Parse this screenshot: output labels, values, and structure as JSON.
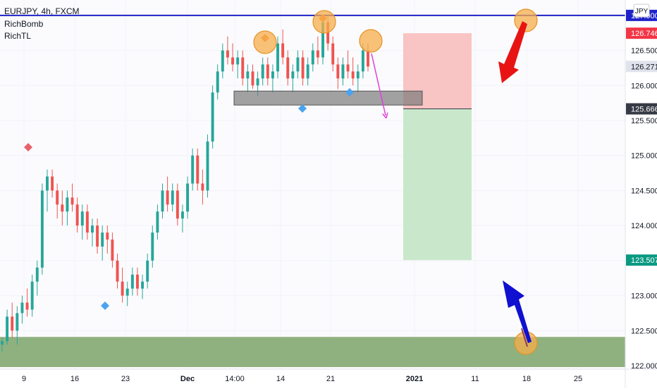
{
  "chart_data": {
    "type": "candlestick",
    "title": "EURJPY, 4h, FXCM",
    "indicators": [
      "RichBomb",
      "RichTL"
    ],
    "currency_badge": "JPY",
    "y_ticks": [
      "127.000",
      "126.500",
      "126.000",
      "125.500",
      "125.000",
      "124.500",
      "124.000",
      "123.500",
      "123.000",
      "122.500",
      "122.000"
    ],
    "x_ticks": [
      "9",
      "16",
      "23",
      "Dec",
      "14:00",
      "14",
      "21",
      "2021",
      "11",
      "18",
      "25"
    ],
    "ylim": [
      121.95,
      127.22
    ],
    "price_labels": [
      {
        "text": "127.000",
        "value": 127.0,
        "color": "#1e22c8"
      },
      {
        "text": "126.746",
        "value": 126.746,
        "color": "#f23645"
      },
      {
        "text": "126.271",
        "value": 126.271,
        "color": "#e0e3eb"
      },
      {
        "text": "125.666",
        "value": 125.666,
        "color": "#363a45"
      },
      {
        "text": "123.507",
        "value": 123.507,
        "color": "#089981"
      }
    ],
    "resistance_line": 127.0,
    "support_zone": [
      121.98,
      122.41
    ],
    "consolidation_zone": [
      125.72,
      125.92
    ],
    "trade": {
      "entry": 125.666,
      "stop": 126.746,
      "target": 123.507
    },
    "colors": {
      "up": "#26a69a",
      "down": "#ef5350",
      "resistance": "#1e22c8",
      "support_zone": "#8fb17f",
      "stop_box": "#f9c4c4",
      "target_box": "#c9e8cb",
      "top_marker": "#f4893b",
      "bottom_marker": "#4aa3f0",
      "orange_circle": "#f7ad4b",
      "magenta_arrow": "#e040d8",
      "red_arrow": "#e81414",
      "blue_arrow": "#1010d0"
    },
    "candles": [
      [
        122.3,
        122.4,
        122.2,
        122.35
      ],
      [
        122.35,
        122.8,
        122.3,
        122.7
      ],
      [
        122.7,
        122.9,
        122.4,
        122.5
      ],
      [
        122.5,
        122.85,
        122.3,
        122.75
      ],
      [
        122.75,
        123.0,
        122.6,
        122.9
      ],
      [
        122.9,
        123.1,
        122.7,
        122.8
      ],
      [
        122.8,
        123.3,
        122.7,
        123.2
      ],
      [
        123.2,
        123.5,
        123.0,
        123.4
      ],
      [
        123.4,
        124.6,
        123.3,
        124.5
      ],
      [
        124.5,
        124.8,
        124.2,
        124.7
      ],
      [
        124.7,
        124.8,
        124.4,
        124.5
      ],
      [
        124.5,
        124.6,
        124.1,
        124.3
      ],
      [
        124.3,
        124.5,
        124.0,
        124.2
      ],
      [
        124.2,
        124.5,
        124.0,
        124.4
      ],
      [
        124.4,
        124.6,
        124.2,
        124.3
      ],
      [
        124.3,
        124.4,
        123.9,
        124.0
      ],
      [
        124.0,
        124.3,
        123.8,
        124.2
      ],
      [
        124.2,
        124.3,
        123.8,
        123.9
      ],
      [
        123.9,
        124.1,
        123.7,
        124.0
      ],
      [
        124.0,
        124.1,
        123.6,
        123.7
      ],
      [
        123.7,
        124.0,
        123.5,
        123.9
      ],
      [
        123.9,
        124.0,
        123.6,
        123.8
      ],
      [
        123.8,
        123.9,
        123.4,
        123.5
      ],
      [
        123.5,
        123.6,
        123.1,
        123.2
      ],
      [
        123.2,
        123.4,
        122.9,
        123.0
      ],
      [
        123.0,
        123.2,
        122.85,
        123.1
      ],
      [
        123.1,
        123.4,
        123.0,
        123.3
      ],
      [
        123.3,
        123.4,
        123.0,
        123.1
      ],
      [
        123.1,
        123.3,
        122.95,
        123.2
      ],
      [
        123.2,
        123.6,
        123.1,
        123.5
      ],
      [
        123.5,
        124.0,
        123.4,
        123.9
      ],
      [
        123.9,
        124.3,
        123.8,
        124.2
      ],
      [
        124.2,
        124.6,
        124.1,
        124.5
      ],
      [
        124.5,
        124.7,
        124.2,
        124.3
      ],
      [
        124.3,
        124.6,
        124.2,
        124.5
      ],
      [
        124.5,
        124.6,
        124.0,
        124.1
      ],
      [
        124.1,
        124.3,
        123.9,
        124.2
      ],
      [
        124.2,
        124.7,
        124.1,
        124.6
      ],
      [
        124.6,
        125.1,
        124.5,
        125.0
      ],
      [
        125.0,
        125.1,
        124.5,
        124.6
      ],
      [
        124.6,
        124.8,
        124.3,
        124.5
      ],
      [
        124.5,
        125.3,
        124.4,
        125.2
      ],
      [
        125.2,
        126.0,
        125.1,
        125.9
      ],
      [
        125.9,
        126.3,
        125.8,
        126.2
      ],
      [
        126.2,
        126.6,
        126.1,
        126.5
      ],
      [
        126.5,
        126.7,
        126.3,
        126.4
      ],
      [
        126.4,
        126.6,
        126.2,
        126.3
      ],
      [
        126.3,
        126.5,
        126.1,
        126.4
      ],
      [
        126.4,
        126.5,
        126.0,
        126.1
      ],
      [
        126.1,
        126.3,
        125.9,
        126.2
      ],
      [
        126.2,
        126.3,
        125.95,
        126.0
      ],
      [
        126.0,
        126.2,
        125.85,
        126.1
      ],
      [
        126.1,
        126.4,
        126.0,
        126.3
      ],
      [
        126.3,
        126.4,
        126.0,
        126.1
      ],
      [
        126.1,
        126.3,
        125.9,
        126.2
      ],
      [
        126.2,
        126.7,
        126.1,
        126.6
      ],
      [
        126.6,
        126.8,
        126.3,
        126.4
      ],
      [
        126.4,
        126.5,
        126.0,
        126.1
      ],
      [
        126.1,
        126.3,
        125.9,
        126.2
      ],
      [
        126.2,
        126.5,
        126.1,
        126.4
      ],
      [
        126.4,
        126.5,
        126.0,
        126.1
      ],
      [
        126.1,
        126.4,
        126.0,
        126.3
      ],
      [
        126.3,
        126.6,
        126.2,
        126.5
      ],
      [
        126.5,
        126.7,
        126.3,
        126.4
      ],
      [
        126.4,
        127.0,
        126.3,
        126.9
      ],
      [
        126.9,
        127.0,
        126.5,
        126.6
      ],
      [
        126.6,
        126.7,
        126.2,
        126.3
      ],
      [
        126.3,
        126.4,
        125.95,
        126.1
      ],
      [
        126.1,
        126.4,
        126.0,
        126.3
      ],
      [
        126.3,
        126.5,
        126.1,
        126.2
      ],
      [
        126.2,
        126.4,
        126.0,
        126.1
      ],
      [
        126.1,
        126.3,
        125.9,
        126.2
      ],
      [
        126.2,
        126.6,
        126.1,
        126.5
      ],
      [
        126.5,
        126.6,
        126.2,
        126.27
      ]
    ]
  }
}
